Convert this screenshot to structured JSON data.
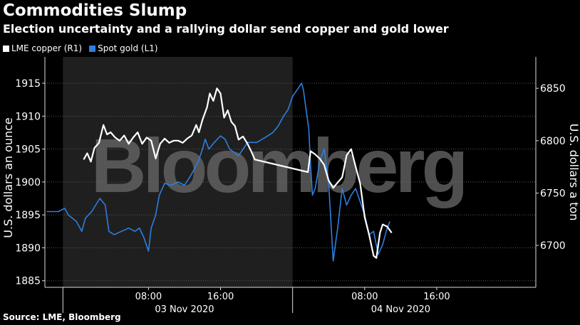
{
  "header": {
    "title": "Commodities Slump",
    "subtitle": "Election uncertainty and a rallying dollar send copper and gold lower"
  },
  "legend": {
    "items": [
      {
        "label": "LME copper (R1)",
        "color": "#ffffff"
      },
      {
        "label": "Spot gold (L1)",
        "color": "#2d7fe0"
      }
    ]
  },
  "watermark": "Bloomberg",
  "footer": {
    "source": "Source: LME, Bloomberg"
  },
  "chart_data": {
    "type": "line",
    "left_axis": {
      "label": "U.S. dollars an ounce",
      "ticks": [
        1885,
        1890,
        1895,
        1900,
        1905,
        1910,
        1915
      ],
      "range": [
        1884,
        1919
      ]
    },
    "right_axis": {
      "label": "U.S. dollars a ton",
      "ticks": [
        6700,
        6750,
        6800,
        6850
      ],
      "range": [
        6660,
        6880
      ]
    },
    "x_axis": {
      "unit": "hours since 03 Nov 2020 00:00",
      "range": [
        -3.5,
        51
      ],
      "tick_labels": [
        {
          "x": 8,
          "label": "08:00"
        },
        {
          "x": 16,
          "label": "16:00"
        },
        {
          "x": 32,
          "label": "08:00"
        },
        {
          "x": 40,
          "label": "16:00"
        }
      ],
      "day_labels": [
        {
          "x": 12,
          "label": "03 Nov 2020"
        },
        {
          "x": 36,
          "label": "04 Nov 2020"
        }
      ],
      "shaded_range": [
        -1.5,
        24
      ]
    },
    "series": [
      {
        "name": "Spot gold (L1)",
        "axis": "left",
        "color": "#2d7fe0",
        "points": [
          [
            -3.3,
            1895.5
          ],
          [
            -2,
            1895.5
          ],
          [
            -1.3,
            1896
          ],
          [
            -0.9,
            1895
          ],
          [
            0,
            1894
          ],
          [
            0.6,
            1892.5
          ],
          [
            1,
            1894.5
          ],
          [
            1.7,
            1895.5
          ],
          [
            2.6,
            1897.5
          ],
          [
            3.2,
            1896.5
          ],
          [
            3.6,
            1892.5
          ],
          [
            4.2,
            1892
          ],
          [
            5,
            1892.5
          ],
          [
            5.8,
            1893
          ],
          [
            6.5,
            1892.5
          ],
          [
            7,
            1893
          ],
          [
            7.5,
            1891.5
          ],
          [
            8,
            1889.5
          ],
          [
            8.3,
            1893
          ],
          [
            8.8,
            1895
          ],
          [
            9.2,
            1898
          ],
          [
            9.8,
            1899.8
          ],
          [
            10.5,
            1899.5
          ],
          [
            11.3,
            1900
          ],
          [
            12,
            1899.5
          ],
          [
            12.7,
            1901
          ],
          [
            13.5,
            1903
          ],
          [
            14,
            1905
          ],
          [
            14.3,
            1906.5
          ],
          [
            14.7,
            1905
          ],
          [
            15.3,
            1906
          ],
          [
            16,
            1907
          ],
          [
            16.5,
            1906.5
          ],
          [
            17,
            1905
          ],
          [
            18,
            1904
          ],
          [
            19,
            1906
          ],
          [
            20,
            1906
          ],
          [
            21,
            1906.8
          ],
          [
            21.8,
            1907.5
          ],
          [
            22.4,
            1908.5
          ],
          [
            23,
            1910
          ],
          [
            23.5,
            1911
          ],
          [
            24,
            1913
          ],
          [
            24.5,
            1914
          ],
          [
            25,
            1915
          ],
          [
            25.2,
            1914
          ],
          [
            25.5,
            1911
          ],
          [
            25.8,
            1908
          ],
          [
            26,
            1902.5
          ],
          [
            26.2,
            1898
          ],
          [
            26.5,
            1899
          ],
          [
            27,
            1903
          ],
          [
            27.5,
            1905
          ],
          [
            28,
            1900
          ],
          [
            28.5,
            1888
          ],
          [
            28.7,
            1890
          ],
          [
            29,
            1893
          ],
          [
            29.5,
            1899
          ],
          [
            30,
            1896.5
          ],
          [
            30.5,
            1898
          ],
          [
            31,
            1899
          ],
          [
            31.5,
            1897
          ],
          [
            32,
            1895
          ],
          [
            32.5,
            1892
          ],
          [
            33,
            1892.5
          ],
          [
            33.5,
            1889
          ],
          [
            34,
            1890.5
          ],
          [
            34.5,
            1893
          ],
          [
            34.8,
            1894
          ]
        ]
      },
      {
        "name": "LME copper (R1)",
        "axis": "right",
        "color": "#ffffff",
        "points": [
          [
            0.8,
            6782
          ],
          [
            1.2,
            6788
          ],
          [
            1.6,
            6780
          ],
          [
            2,
            6793
          ],
          [
            2.5,
            6798
          ],
          [
            3,
            6815
          ],
          [
            3.4,
            6806
          ],
          [
            3.8,
            6808
          ],
          [
            4.3,
            6803
          ],
          [
            4.8,
            6800
          ],
          [
            5.3,
            6805
          ],
          [
            5.8,
            6797
          ],
          [
            6.3,
            6803
          ],
          [
            6.8,
            6808
          ],
          [
            7.3,
            6797
          ],
          [
            7.8,
            6803
          ],
          [
            8.3,
            6800
          ],
          [
            8.8,
            6783
          ],
          [
            9.3,
            6797
          ],
          [
            9.8,
            6802
          ],
          [
            10.3,
            6798
          ],
          [
            10.8,
            6800
          ],
          [
            11.3,
            6800
          ],
          [
            11.8,
            6798
          ],
          [
            12.3,
            6802
          ],
          [
            12.8,
            6805
          ],
          [
            13.3,
            6815
          ],
          [
            13.6,
            6808
          ],
          [
            14,
            6820
          ],
          [
            14.5,
            6832
          ],
          [
            14.8,
            6845
          ],
          [
            15.2,
            6838
          ],
          [
            15.6,
            6850
          ],
          [
            16,
            6845
          ],
          [
            16.4,
            6822
          ],
          [
            16.8,
            6829
          ],
          [
            17.2,
            6818
          ],
          [
            17.6,
            6814
          ],
          [
            18,
            6801
          ],
          [
            18.5,
            6804
          ],
          [
            19,
            6797
          ],
          [
            19.4,
            6790
          ],
          [
            19.8,
            6782
          ],
          [
            25.7,
            6770
          ],
          [
            26,
            6790
          ],
          [
            26.5,
            6787
          ],
          [
            27,
            6783
          ],
          [
            27.5,
            6777
          ],
          [
            28,
            6762
          ],
          [
            28.5,
            6755
          ],
          [
            29,
            6760
          ],
          [
            29.5,
            6765
          ],
          [
            30,
            6786
          ],
          [
            30.5,
            6792
          ],
          [
            31,
            6775
          ],
          [
            31.5,
            6759
          ],
          [
            32,
            6727
          ],
          [
            32.5,
            6710
          ],
          [
            33,
            6690
          ],
          [
            33.3,
            6688
          ],
          [
            33.7,
            6712
          ],
          [
            34,
            6720
          ],
          [
            34.5,
            6718
          ],
          [
            35,
            6712
          ]
        ]
      }
    ]
  }
}
